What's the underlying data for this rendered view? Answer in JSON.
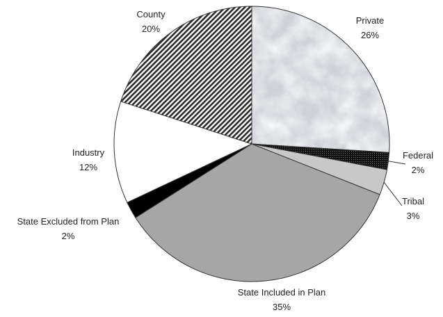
{
  "chart_data": {
    "type": "pie",
    "slices": [
      {
        "name": "Private",
        "value": 26,
        "value_label": "26%",
        "fill": "marble"
      },
      {
        "name": "Federal",
        "value": 2,
        "value_label": "2%",
        "fill": "dark-dots"
      },
      {
        "name": "Tribal",
        "value": 3,
        "value_label": "3%",
        "fill": "#c8c8c8"
      },
      {
        "name": "State Included in Plan",
        "value": 35,
        "value_label": "35%",
        "fill": "#a6a6a6"
      },
      {
        "name": "State Excluded from Plan",
        "value": 2,
        "value_label": "2%",
        "fill": "#000000"
      },
      {
        "name": "Industry",
        "value": 12,
        "value_label": "12%",
        "fill": "#ffffff"
      },
      {
        "name": "County",
        "value": 20,
        "value_label": "20%",
        "fill": "diagonal-hatch"
      }
    ],
    "legend": "none"
  }
}
